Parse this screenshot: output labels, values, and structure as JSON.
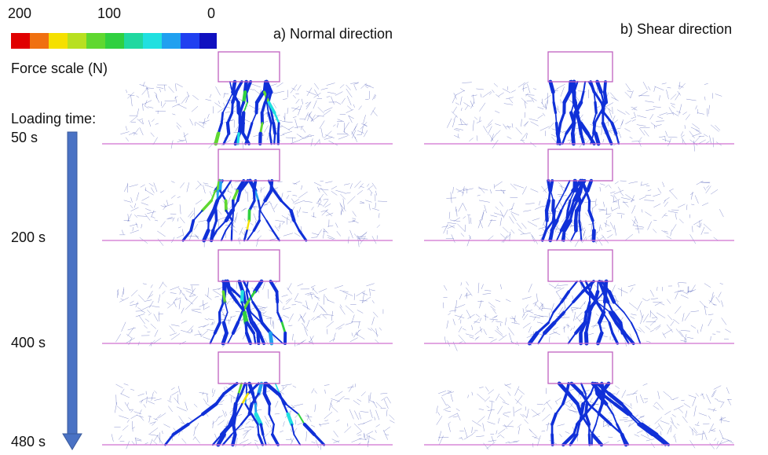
{
  "colorbar": {
    "labels": [
      "200",
      "100",
      "0"
    ],
    "title": "Force scale (N)"
  },
  "panels": {
    "a": "a) Normal direction",
    "b": "b) Shear direction"
  },
  "loading_time": {
    "label": "Loading time:",
    "times": [
      "50 s",
      "200 s",
      "400 s",
      "480 s"
    ]
  }
}
